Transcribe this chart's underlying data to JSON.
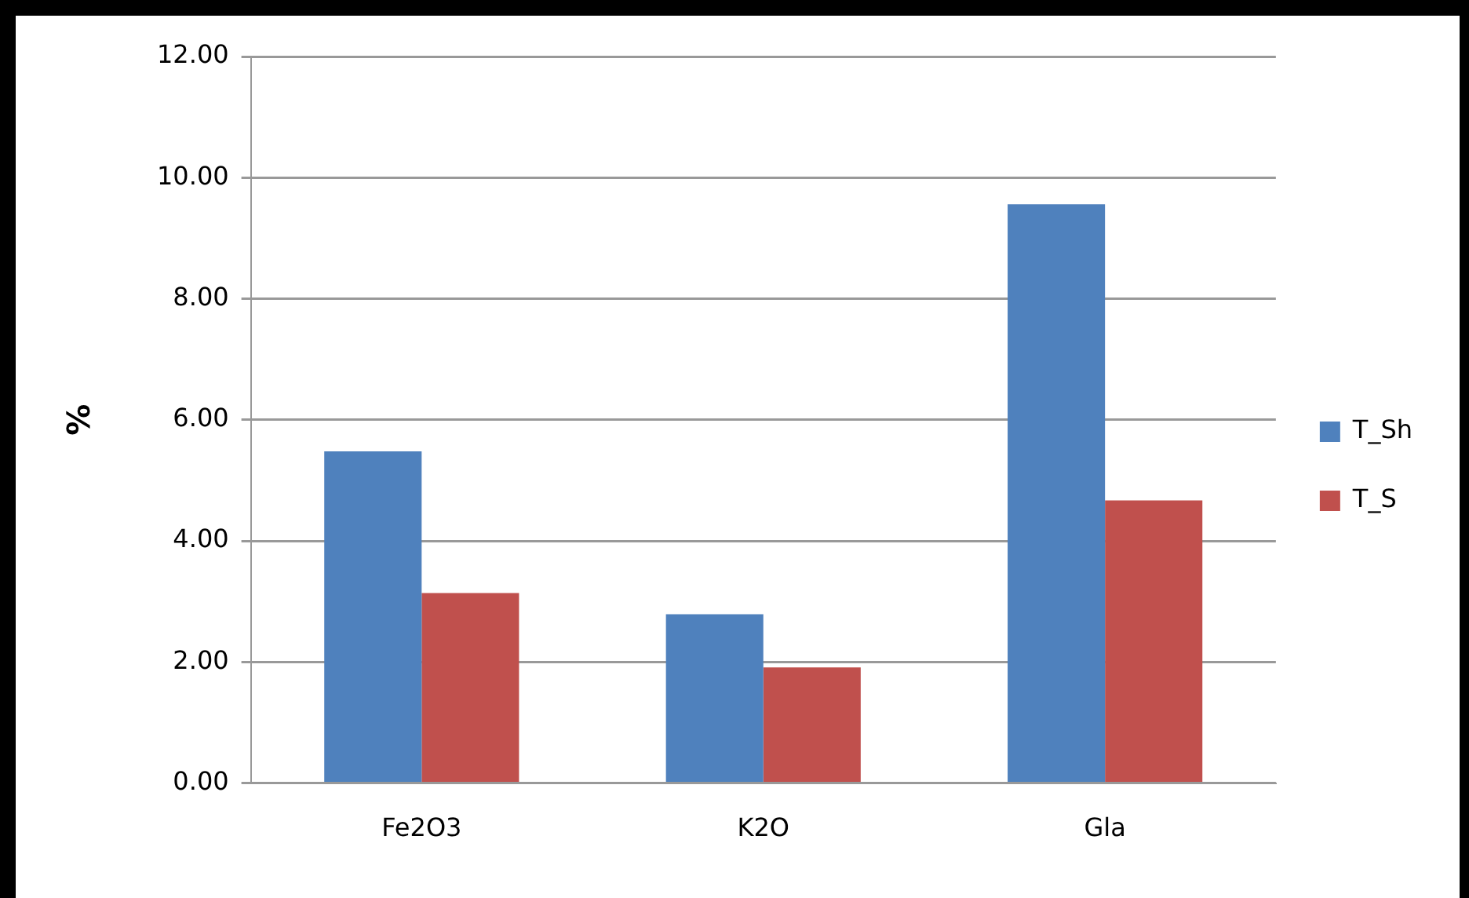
{
  "chart_data": {
    "type": "bar",
    "ylabel": "%",
    "categories": [
      "Fe2O3",
      "K2O",
      "Gla"
    ],
    "series": [
      {
        "name": "T_Sh",
        "color": "#4f81bd",
        "values": [
          5.48,
          2.79,
          9.56
        ]
      },
      {
        "name": "T_S",
        "color": "#c0504d",
        "values": [
          3.14,
          1.91,
          4.67
        ]
      }
    ],
    "ylim": [
      0,
      12
    ],
    "yticks": [
      {
        "value": 0,
        "label": "0.00"
      },
      {
        "value": 2,
        "label": "2.00"
      },
      {
        "value": 4,
        "label": "4.00"
      },
      {
        "value": 6,
        "label": "6.00"
      },
      {
        "value": 8,
        "label": "8.00"
      },
      {
        "value": 10,
        "label": "10.00"
      },
      {
        "value": 12,
        "label": "12.00"
      }
    ],
    "grid": "y",
    "legend": "right"
  }
}
